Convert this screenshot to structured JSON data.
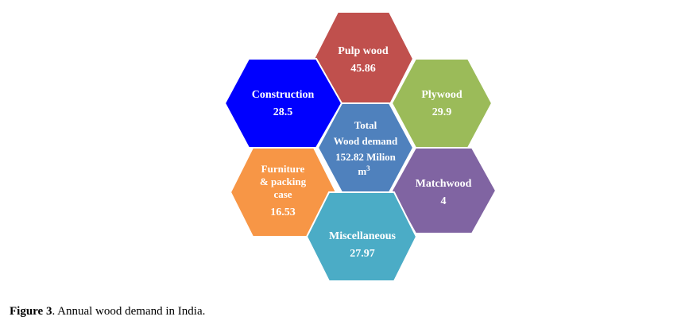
{
  "hexagons": {
    "pulp": {
      "label": "Pulp wood",
      "value": "45.86",
      "color": "#c0504d"
    },
    "construction": {
      "label": "Construction",
      "value": "28.5",
      "color": "#0000ff"
    },
    "plywood": {
      "label": "Plywood",
      "value": "29.9",
      "color": "#9bbb59"
    },
    "center": {
      "line1": "Total",
      "line2": "Wood demand",
      "line3": "152.82  Milion",
      "line4": "m",
      "superscript": "3",
      "color": "#4f81bd"
    },
    "furniture": {
      "line1": "Furniture",
      "line2": "& packing",
      "line3": "case",
      "value": "16.53",
      "color": "#f79646"
    },
    "matchwood": {
      "label": "Matchwood",
      "value": "4",
      "color": "#8064a2"
    },
    "misc": {
      "label": "Miscellaneous",
      "value": "27.97",
      "color": "#4bacc6"
    }
  },
  "caption": {
    "prefix": "Figure 3",
    "text": ". Annual wood demand in India."
  }
}
